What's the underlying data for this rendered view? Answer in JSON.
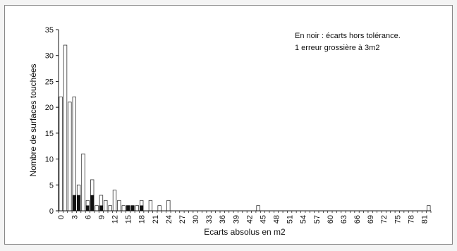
{
  "chart_data": {
    "type": "bar",
    "xlabel": "Ecarts absolus en m2",
    "ylabel": "Nombre de surfaces touchées",
    "ylim": [
      0,
      35
    ],
    "yticks": [
      0,
      5,
      10,
      15,
      20,
      25,
      30,
      35
    ],
    "xticks": [
      0,
      3,
      6,
      9,
      12,
      15,
      18,
      21,
      24,
      27,
      30,
      33,
      36,
      39,
      42,
      45,
      48,
      51,
      54,
      57,
      60,
      63,
      66,
      69,
      72,
      75,
      78,
      81
    ],
    "annotations": [
      "En noir : écarts hors tolérance.",
      "1 erreur grossière à 3m2"
    ],
    "grid": false,
    "x": [
      0,
      1,
      2,
      3,
      4,
      5,
      6,
      7,
      8,
      9,
      10,
      11,
      12,
      13,
      14,
      15,
      16,
      17,
      18,
      19,
      20,
      21,
      22,
      23,
      24,
      25,
      26,
      27,
      28,
      29,
      30,
      31,
      32,
      33,
      34,
      35,
      36,
      37,
      38,
      39,
      40,
      41,
      42,
      43,
      44,
      45,
      46,
      47,
      48,
      49,
      50,
      51,
      52,
      53,
      54,
      55,
      56,
      57,
      58,
      59,
      60,
      61,
      62,
      63,
      64,
      65,
      66,
      67,
      68,
      69,
      70,
      71,
      72,
      73,
      74,
      75,
      76,
      77,
      78,
      79,
      80,
      81,
      82
    ],
    "series": [
      {
        "values": [
          22,
          32,
          21,
          22,
          5,
          11,
          2,
          6,
          1,
          3,
          2,
          1,
          4,
          2,
          1,
          1,
          1,
          1,
          2,
          0,
          2,
          0,
          1,
          0,
          2,
          0,
          0,
          0,
          0,
          0,
          0,
          0,
          0,
          0,
          0,
          0,
          0,
          0,
          0,
          0,
          0,
          0,
          0,
          0,
          1,
          0,
          0,
          0,
          0,
          0,
          0,
          0,
          0,
          0,
          0,
          0,
          0,
          0,
          0,
          0,
          0,
          0,
          0,
          0,
          0,
          0,
          0,
          0,
          0,
          0,
          0,
          0,
          0,
          0,
          0,
          0,
          0,
          0,
          0,
          0,
          0,
          0,
          1
        ]
      },
      {
        "values": [
          0,
          0,
          0,
          3,
          3,
          0,
          1,
          3,
          0,
          1,
          0,
          0,
          0,
          0,
          0,
          1,
          1,
          0,
          1,
          0,
          0,
          0,
          0,
          0,
          0,
          0,
          0,
          0,
          0,
          0,
          0,
          0,
          0,
          0,
          0,
          0,
          0,
          0,
          0,
          0,
          0,
          0,
          0,
          0,
          0,
          0,
          0,
          0,
          0,
          0,
          0,
          0,
          0,
          0,
          0,
          0,
          0,
          0,
          0,
          0,
          0,
          0,
          0,
          0,
          0,
          0,
          0,
          0,
          0,
          0,
          0,
          0,
          0,
          0,
          0,
          0,
          0,
          0,
          0,
          0,
          0,
          0,
          0
        ]
      }
    ],
    "colors": {
      "total": "#ffffff",
      "hors_tolerance": "#111111",
      "outline": "#333333"
    }
  }
}
